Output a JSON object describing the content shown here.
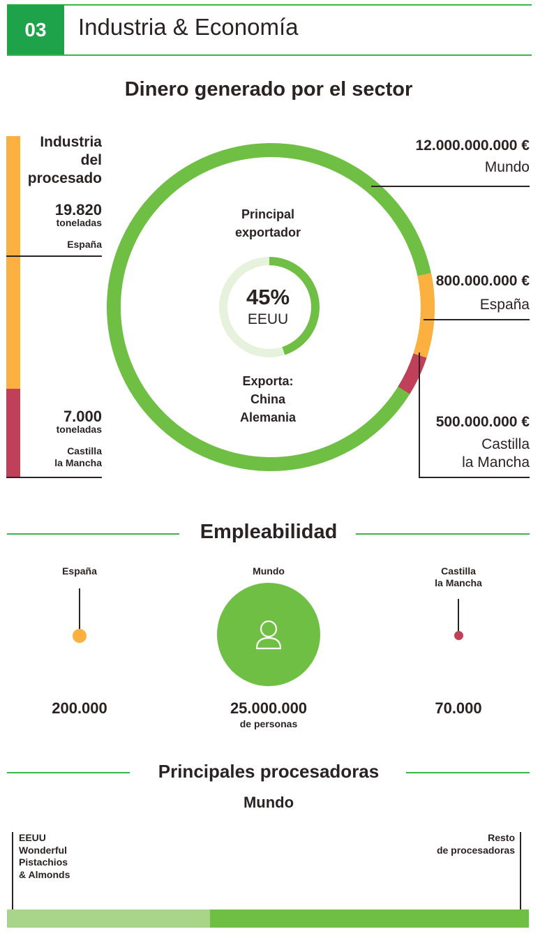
{
  "header": {
    "number": "03",
    "title": "Industria & Economía"
  },
  "money": {
    "title": "Dinero generado por el sector",
    "left": {
      "heading": [
        "Industria",
        "del",
        "procesado"
      ],
      "spain": {
        "value": "19.820",
        "unit": "toneladas",
        "region": "España"
      },
      "clm": {
        "value": "7.000",
        "unit": "toneladas",
        "region_lines": [
          "Castilla",
          "la Mancha"
        ]
      }
    },
    "right": {
      "world": {
        "value": "12.000.000.000 €",
        "region": "Mundo"
      },
      "spain": {
        "value": "800.000.000 €",
        "region": "España"
      },
      "clm": {
        "value": "500.000.000 €",
        "region_lines": [
          "Castilla",
          "la Mancha"
        ]
      }
    },
    "center": {
      "top_lines": [
        "Principal",
        "exportador"
      ],
      "percent": "45%",
      "percent_value": 45,
      "country": "EEUU",
      "bottom_lines": [
        "Exporta:",
        "China",
        "Alemania"
      ]
    }
  },
  "employment": {
    "title": "Empleabilidad",
    "spain": {
      "label": "España",
      "value": "200.000"
    },
    "world": {
      "label": "Mundo",
      "value": "25.000.000",
      "unit": "de personas"
    },
    "clm": {
      "label_lines": [
        "Castilla",
        "la Mancha"
      ],
      "value": "70.000"
    }
  },
  "processors": {
    "title": "Principales procesadoras",
    "subtitle": "Mundo",
    "left_label_lines": [
      "EEUU",
      "Wonderful",
      "Pistachios",
      "& Almonds"
    ],
    "right_label_lines": [
      "Resto",
      "de procesadoras"
    ]
  },
  "colors": {
    "green": "#6fbf44",
    "light_green": "#a9d58a",
    "pale_green": "#e6f2dc",
    "orange": "#fbb040",
    "crimson": "#c0405a",
    "header_green": "#1ea34a"
  }
}
